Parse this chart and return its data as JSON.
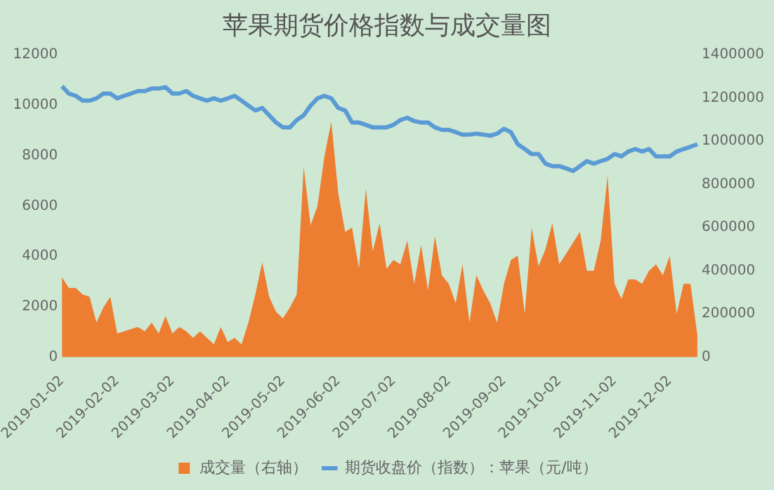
{
  "chart_data": {
    "type": "line",
    "title": "苹果期货价格指数与成交量图",
    "categories": [
      "2019-01-02",
      null,
      null,
      null,
      null,
      null,
      null,
      null,
      "2019-02-02",
      null,
      null,
      null,
      null,
      null,
      null,
      null,
      "2019-03-02",
      null,
      null,
      null,
      null,
      null,
      null,
      null,
      "2019-04-02",
      null,
      null,
      null,
      null,
      null,
      null,
      null,
      "2019-05-02",
      null,
      null,
      null,
      null,
      null,
      null,
      null,
      "2019-06-02",
      null,
      null,
      null,
      null,
      null,
      null,
      null,
      "2019-07-02",
      null,
      null,
      null,
      null,
      null,
      null,
      null,
      "2019-08-02",
      null,
      null,
      null,
      null,
      null,
      null,
      null,
      "2019-09-02",
      null,
      null,
      null,
      null,
      null,
      null,
      null,
      "2019-10-02",
      null,
      null,
      null,
      null,
      null,
      null,
      null,
      "2019-11-02",
      null,
      null,
      null,
      null,
      null,
      null,
      null,
      "2019-12-02",
      null,
      null,
      null,
      null
    ],
    "series": [
      {
        "name": "成交量（右轴）",
        "type": "area",
        "axis": "y2",
        "color": "#ed7d31",
        "values": [
          370000,
          320000,
          320000,
          290000,
          280000,
          160000,
          230000,
          280000,
          110000,
          120000,
          130000,
          140000,
          120000,
          160000,
          110000,
          190000,
          110000,
          140000,
          120000,
          90000,
          120000,
          90000,
          60000,
          140000,
          70000,
          90000,
          60000,
          160000,
          290000,
          440000,
          280000,
          210000,
          180000,
          230000,
          290000,
          880000,
          610000,
          700000,
          930000,
          1090000,
          760000,
          580000,
          600000,
          410000,
          780000,
          490000,
          620000,
          410000,
          450000,
          430000,
          540000,
          340000,
          520000,
          310000,
          560000,
          380000,
          340000,
          250000,
          430000,
          160000,
          380000,
          310000,
          250000,
          160000,
          340000,
          450000,
          470000,
          200000,
          600000,
          420000,
          500000,
          620000,
          430000,
          480000,
          530000,
          580000,
          400000,
          400000,
          540000,
          840000,
          340000,
          270000,
          360000,
          360000,
          340000,
          400000,
          430000,
          380000,
          470000,
          200000,
          340000,
          340000,
          100000
        ]
      },
      {
        "name": "期货收盘价（指数）：苹果（元/吨）",
        "color": "#5b9bd5",
        "values": [
          10750,
          10460,
          10370,
          10180,
          10180,
          10270,
          10460,
          10460,
          10270,
          10370,
          10460,
          10560,
          10560,
          10660,
          10660,
          10710,
          10460,
          10460,
          10560,
          10370,
          10270,
          10180,
          10270,
          10180,
          10270,
          10370,
          10180,
          9980,
          9790,
          9890,
          9600,
          9310,
          9120,
          9120,
          9410,
          9600,
          9980,
          10270,
          10370,
          10270,
          9890,
          9790,
          9310,
          9310,
          9220,
          9120,
          9120,
          9120,
          9220,
          9410,
          9500,
          9370,
          9310,
          9310,
          9120,
          9020,
          9020,
          8930,
          8830,
          8830,
          8870,
          8830,
          8790,
          8870,
          9060,
          8930,
          8450,
          8260,
          8060,
          8060,
          7680,
          7580,
          7580,
          7490,
          7390,
          7580,
          7780,
          7680,
          7780,
          7870,
          8060,
          7970,
          8160,
          8260,
          8160,
          8260,
          7970,
          7970,
          7970,
          8160,
          8260,
          8350,
          8450
        ]
      }
    ],
    "ylim": [
      0,
      12000
    ],
    "yticks": [
      0,
      2000,
      4000,
      6000,
      8000,
      10000,
      12000
    ],
    "y2lim": [
      0,
      1400000
    ],
    "y2ticks": [
      0,
      200000,
      400000,
      600000,
      800000,
      1000000,
      1200000,
      1400000
    ],
    "legend": "bottom"
  }
}
